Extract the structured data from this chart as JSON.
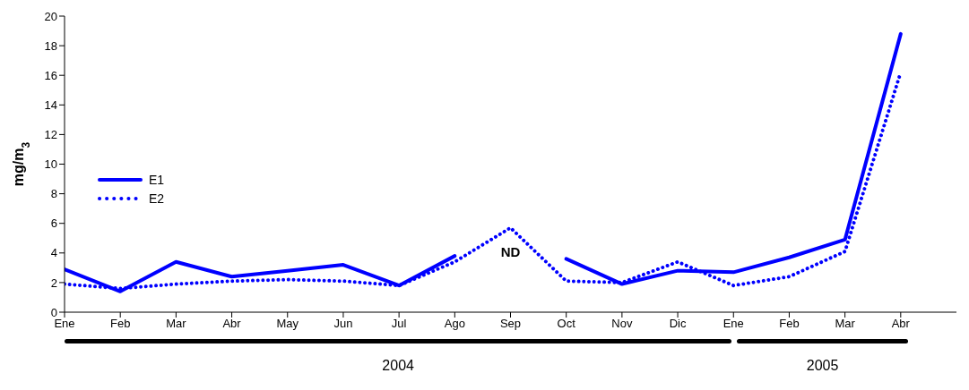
{
  "chart_data": {
    "type": "line",
    "ylabel": "mg/m$_{3}$",
    "categories": [
      "Ene",
      "Feb",
      "Mar",
      "Abr",
      "May",
      "Jun",
      "Jul",
      "Ago",
      "Sep",
      "Oct",
      "Nov",
      "Dic",
      "Ene",
      "Feb",
      "Mar",
      "Abr"
    ],
    "series": [
      {
        "name": "E1",
        "color": "#0000ff",
        "line_style": "solid",
        "values": [
          2.9,
          1.4,
          3.4,
          2.4,
          2.8,
          3.2,
          1.8,
          3.8,
          null,
          3.6,
          1.9,
          2.8,
          2.7,
          3.7,
          4.9,
          18.8
        ]
      },
      {
        "name": "E2",
        "color": "#0000ff",
        "line_style": "dotted",
        "values": [
          1.9,
          1.6,
          1.9,
          2.1,
          2.2,
          2.1,
          1.8,
          3.4,
          5.7,
          2.1,
          2.0,
          3.4,
          1.8,
          2.4,
          4.1,
          16.2
        ]
      }
    ],
    "ylim": [
      0,
      20
    ],
    "yticks": [
      0,
      2,
      4,
      6,
      8,
      10,
      12,
      14,
      16,
      18,
      20
    ],
    "grid": false,
    "legend": "left",
    "marker": "none",
    "annotations": [
      "ND",
      "2004",
      "2005"
    ]
  }
}
